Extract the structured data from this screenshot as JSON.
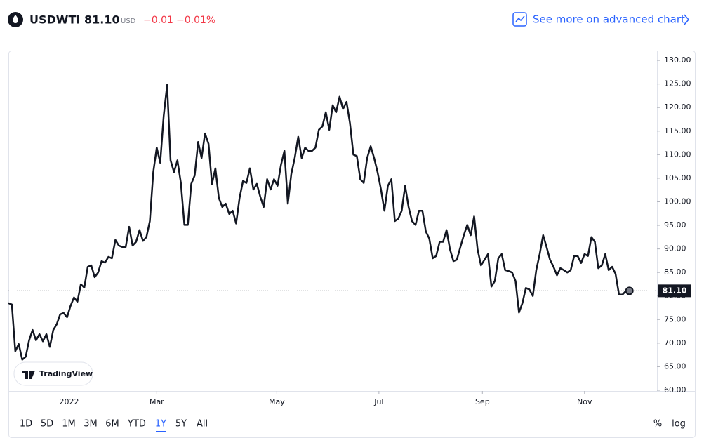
{
  "header": {
    "symbol": "USDWTI",
    "price": "81.10",
    "currency": "USD",
    "change": "−0.01",
    "change_percent": "−0.01%",
    "link": "See more on advanced chart"
  },
  "chart_data": {
    "type": "line",
    "series": [
      {
        "color": "#131722",
        "values": [
          78.5,
          78.2,
          68.3,
          69.8,
          66.5,
          67.1,
          70.6,
          72.8,
          70.6,
          71.9,
          70.4,
          71.9,
          69.2,
          72.8,
          74,
          76.1,
          76.4,
          75.5,
          77.9,
          79.7,
          78.8,
          82.5,
          81.8,
          86.2,
          86.5,
          84,
          85,
          87.4,
          87.1,
          88.3,
          88,
          91.9,
          90.7,
          90.4,
          90.4,
          94.7,
          90.7,
          91.5,
          94,
          91.7,
          92.5,
          95.9,
          106.3,
          111.5,
          108.3,
          118.2,
          124.8,
          108.8,
          106.3,
          108.8,
          104,
          95.1,
          95.1,
          103.8,
          105.6,
          112.7,
          109.3,
          114.5,
          112.3,
          103.8,
          107.1,
          100.8,
          98.9,
          99.6,
          97.4,
          98.1,
          95.4,
          100.8,
          104.4,
          104,
          107.1,
          102.6,
          103.8,
          101.1,
          98.9,
          104.8,
          102.6,
          104.8,
          103.4,
          107.8,
          110.8,
          99.6,
          105.9,
          109.3,
          113.8,
          109.3,
          111.5,
          110.8,
          110.8,
          111.5,
          115.3,
          116,
          119,
          115.3,
          120.5,
          119,
          122.3,
          119.7,
          121.2,
          116.7,
          110,
          109.7,
          104.8,
          104,
          109.3,
          111.8,
          109.3,
          106.3,
          102.6,
          98.1,
          103.4,
          104.8,
          95.9,
          96.4,
          98.1,
          103.4,
          98.9,
          95.9,
          95.1,
          98.1,
          98.1,
          93.7,
          92.2,
          88,
          88.5,
          91.5,
          91.5,
          94,
          89.9,
          87.4,
          87.7,
          90.4,
          92.9,
          95.1,
          92.9,
          96.9,
          89.9,
          86.5,
          87.7,
          88.9,
          82,
          83.2,
          88,
          88.9,
          85.5,
          85.3,
          85,
          83.2,
          76.5,
          78.5,
          81.7,
          81.4,
          80,
          85.5,
          88.9,
          92.9,
          90.4,
          87.7,
          86.2,
          84.4,
          85.9,
          85.5,
          85,
          85.5,
          88.5,
          88.5,
          87,
          88.9,
          88.5,
          92.5,
          91.5,
          85.9,
          86.5,
          88.9,
          85.5,
          86.2,
          84.7,
          80.3,
          80.3,
          81.1,
          81.1
        ]
      }
    ],
    "xlim": [
      0,
      188
    ],
    "xticks": [
      {
        "value": 17.6,
        "label": "2022"
      },
      {
        "value": 43,
        "label": "Mar"
      },
      {
        "value": 77.8,
        "label": "May"
      },
      {
        "value": 107.4,
        "label": "Jul"
      },
      {
        "value": 137.4,
        "label": "Sep"
      },
      {
        "value": 167,
        "label": "Nov"
      }
    ],
    "ylim": [
      59.85,
      132.1
    ],
    "yticks": [
      {
        "value": 60,
        "label": "60.00"
      },
      {
        "value": 65,
        "label": "65.00"
      },
      {
        "value": 70,
        "label": "70.00"
      },
      {
        "value": 75,
        "label": "75.00"
      },
      {
        "value": 80,
        "label": "80.00"
      },
      {
        "value": 85,
        "label": "85.00"
      },
      {
        "value": 90,
        "label": "90.00"
      },
      {
        "value": 95,
        "label": "95.00"
      },
      {
        "value": 100,
        "label": "100.00"
      },
      {
        "value": 105,
        "label": "105.00"
      },
      {
        "value": 110,
        "label": "110.00"
      },
      {
        "value": 115,
        "label": "115.00"
      },
      {
        "value": 120,
        "label": "120.00"
      },
      {
        "value": 125,
        "label": "125.00"
      },
      {
        "value": 130,
        "label": "130.00"
      }
    ],
    "price_line": {
      "value": 81.1,
      "label": "81.10"
    },
    "watermark": "TradingView"
  },
  "footer": {
    "ranges": [
      "1D",
      "5D",
      "1M",
      "3M",
      "6M",
      "YTD",
      "1Y",
      "5Y",
      "All"
    ],
    "selected_range": "1Y",
    "options": [
      "%",
      "log"
    ]
  }
}
